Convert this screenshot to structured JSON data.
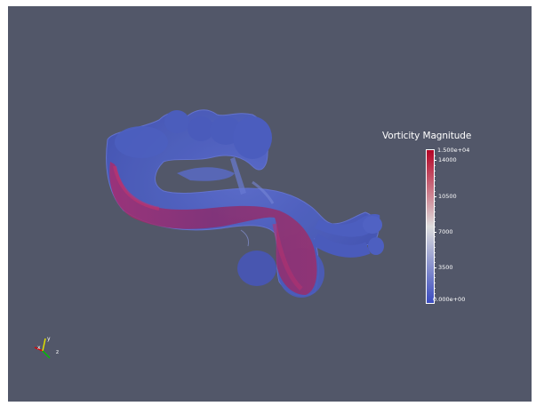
{
  "window": {
    "background_color": "#525769"
  },
  "scalar_bar": {
    "title": "Vorticity Magnitude",
    "max_label": "1.500e+04",
    "min_label": "0.000e+00",
    "ticks": [
      {
        "value": 14000,
        "label": "14000"
      },
      {
        "value": 10500,
        "label": "10500"
      },
      {
        "value": 7000,
        "label": "7000"
      },
      {
        "value": 3500,
        "label": "3500"
      }
    ],
    "range": [
      0,
      15000
    ],
    "colormap": [
      "#3b4cc0",
      "#dddddd",
      "#b40426"
    ]
  },
  "orientation_axes": {
    "x_label": "x",
    "y_label": "y",
    "z_label": "z",
    "x_color": "#e00000",
    "y_color": "#e0e000",
    "z_color": "#00c000"
  },
  "surface": {
    "outer_color": "#4a5cc4",
    "inner_color": "#a0275f"
  }
}
